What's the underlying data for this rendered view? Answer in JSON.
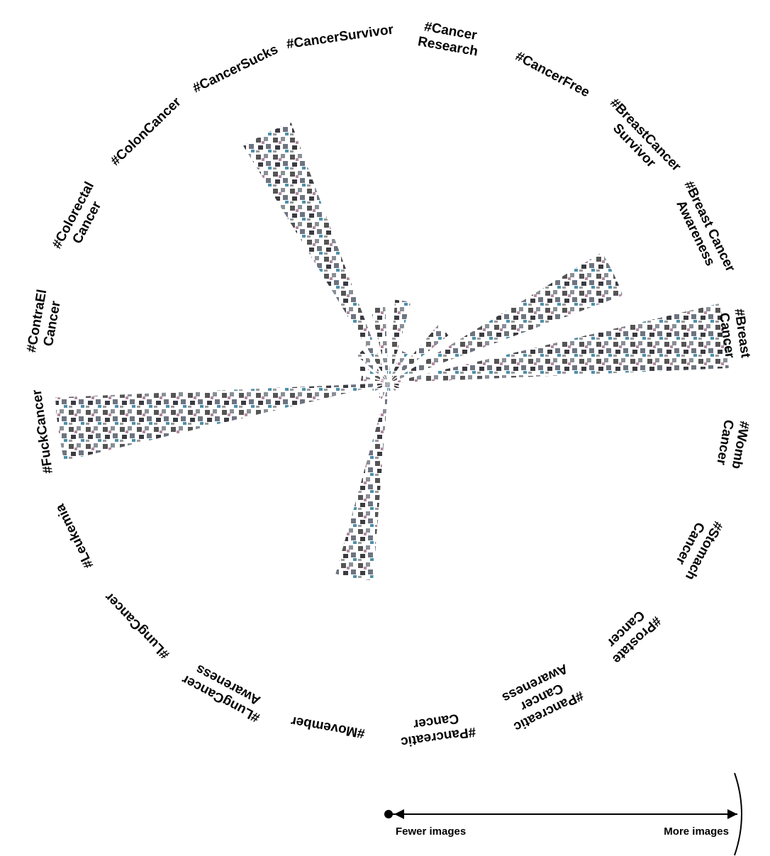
{
  "chart_data": {
    "type": "radial",
    "categories": [
      [
        "#Cancer",
        "Research"
      ],
      [
        "#CancerFree"
      ],
      [
        "#BreastCancer",
        "Survivor"
      ],
      [
        "#Breast Cancer",
        "Awareness"
      ],
      [
        "#Breast",
        "Cancer"
      ],
      [
        "#Womb",
        "Cancer"
      ],
      [
        "#Stomach",
        "Cancer"
      ],
      [
        "#Prostate",
        "Cancer"
      ],
      [
        "#Pancreatic",
        "Cancer",
        "Awareness"
      ],
      [
        "#Pancreatic",
        "Cancer"
      ],
      [
        "#Movember"
      ],
      [
        "#LungCancer",
        "Awareness"
      ],
      [
        "#LungCancer"
      ],
      [
        "#Leukemia"
      ],
      [
        "#FuckCancer"
      ],
      [
        "#ContraEl",
        "Cancer"
      ],
      [
        "#Colorectal",
        "Cancer"
      ],
      [
        "#ColonCancer"
      ],
      [
        "#CancerSucks"
      ],
      [
        "#CancerSurvivor"
      ]
    ],
    "values": [
      0.24,
      0.1,
      0.22,
      0.72,
      0.98,
      0.03,
      0.04,
      0.03,
      0.02,
      0.03,
      0.57,
      0.05,
      0.04,
      0.05,
      0.96,
      0.08,
      0.1,
      0.12,
      0.8,
      0.22
    ],
    "ylim": [
      0,
      1
    ],
    "legend": {
      "low": "Fewer images",
      "high": "More images"
    }
  }
}
